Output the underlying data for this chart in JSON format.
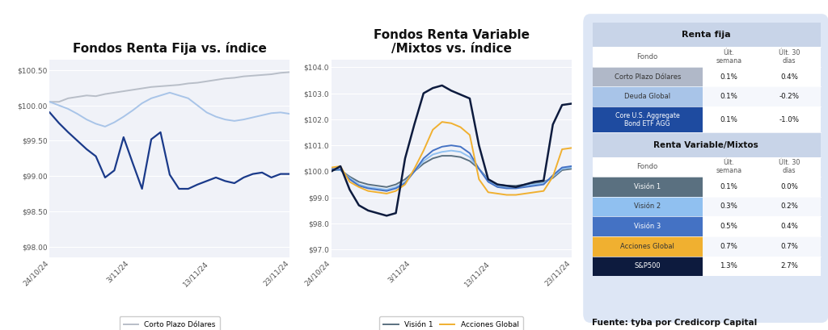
{
  "chart1_title": "Fondos Renta Fija vs. índice",
  "chart2_title": "Fondos Renta Variable\n/Mixtos vs. índice",
  "x_labels": [
    "24/10/24",
    "3/11/24",
    "13/11/24",
    "23/11/24"
  ],
  "chart1_yticks": [
    98.0,
    98.5,
    99.0,
    99.5,
    100.0,
    100.5
  ],
  "chart1_ylim": [
    97.85,
    100.65
  ],
  "chart2_yticks": [
    97.0,
    98.0,
    99.0,
    100.0,
    101.0,
    102.0,
    103.0,
    104.0
  ],
  "chart2_ylim": [
    96.7,
    104.3
  ],
  "corto_plazo": [
    100.05,
    100.05,
    100.1,
    100.12,
    100.14,
    100.13,
    100.16,
    100.18,
    100.2,
    100.22,
    100.24,
    100.26,
    100.27,
    100.28,
    100.29,
    100.31,
    100.32,
    100.34,
    100.36,
    100.38,
    100.39,
    100.41,
    100.42,
    100.43,
    100.44,
    100.46,
    100.47
  ],
  "deuda_global": [
    100.05,
    100.0,
    99.95,
    99.88,
    99.8,
    99.74,
    99.7,
    99.76,
    99.84,
    99.93,
    100.03,
    100.1,
    100.14,
    100.18,
    100.14,
    100.1,
    100.0,
    99.9,
    99.84,
    99.8,
    99.78,
    99.8,
    99.83,
    99.86,
    99.89,
    99.9,
    99.88
  ],
  "rf_eeuu": [
    99.9,
    99.75,
    99.62,
    99.5,
    99.38,
    99.28,
    98.98,
    99.08,
    99.55,
    99.18,
    98.82,
    99.52,
    99.62,
    99.02,
    98.82,
    98.82,
    98.88,
    98.93,
    98.98,
    98.93,
    98.9,
    98.98,
    99.03,
    99.05,
    98.98,
    99.03,
    99.03
  ],
  "vision1": [
    100.05,
    100.05,
    99.8,
    99.6,
    99.5,
    99.45,
    99.4,
    99.5,
    99.7,
    100.0,
    100.3,
    100.5,
    100.6,
    100.6,
    100.55,
    100.4,
    100.1,
    99.7,
    99.5,
    99.45,
    99.45,
    99.5,
    99.55,
    99.6,
    99.75,
    100.05,
    100.1
  ],
  "vision2": [
    100.08,
    100.05,
    99.75,
    99.5,
    99.4,
    99.35,
    99.3,
    99.4,
    99.6,
    100.0,
    100.4,
    100.65,
    100.75,
    100.8,
    100.75,
    100.55,
    100.1,
    99.65,
    99.45,
    99.4,
    99.4,
    99.45,
    99.5,
    99.55,
    99.8,
    100.1,
    100.15
  ],
  "vision3": [
    100.1,
    100.08,
    99.7,
    99.45,
    99.35,
    99.3,
    99.25,
    99.35,
    99.55,
    100.0,
    100.5,
    100.8,
    100.95,
    101.0,
    100.95,
    100.7,
    100.1,
    99.6,
    99.4,
    99.35,
    99.35,
    99.4,
    99.45,
    99.5,
    99.85,
    100.15,
    100.2
  ],
  "acciones_global": [
    100.15,
    100.2,
    99.6,
    99.4,
    99.25,
    99.2,
    99.15,
    99.25,
    99.5,
    100.1,
    100.8,
    101.6,
    101.9,
    101.85,
    101.7,
    101.4,
    99.7,
    99.2,
    99.15,
    99.1,
    99.1,
    99.15,
    99.2,
    99.25,
    99.8,
    100.85,
    100.9
  ],
  "sp500": [
    100.0,
    100.2,
    99.3,
    98.7,
    98.5,
    98.4,
    98.3,
    98.4,
    100.5,
    101.8,
    103.0,
    103.2,
    103.3,
    103.1,
    102.95,
    102.8,
    101.0,
    99.7,
    99.5,
    99.45,
    99.4,
    99.5,
    99.6,
    99.65,
    101.8,
    102.55,
    102.6
  ],
  "color_corto": "#b8bec8",
  "color_deuda": "#a8c4e8",
  "color_rfeeuu": "#1a3a8a",
  "color_vision1": "#5a7080",
  "color_vision2": "#90c0f0",
  "color_vision3": "#4472c4",
  "color_acciones": "#f0b030",
  "color_sp500": "#0d1b3e",
  "fuente_text": "Fuente: tyba por Credicorp Capital"
}
